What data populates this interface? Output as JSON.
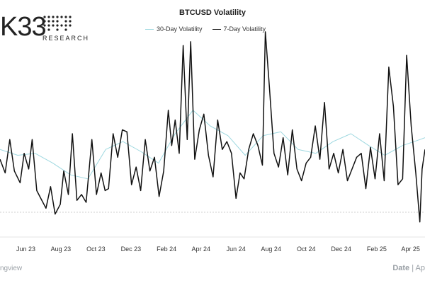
{
  "branding": {
    "logo_mark": "K33",
    "logo_subtitle": "RESEARCH"
  },
  "footer": {
    "source_fragment": "ngview",
    "date_label": "Date",
    "date_value_fragment": "Ap"
  },
  "colors": {
    "series_30d": "#9ed8e0",
    "series_7d": "#111111",
    "gridline": "#cfcfcf"
  },
  "chart_data": {
    "type": "line",
    "title": "BTCUSD Volatility",
    "xlabel": "Date",
    "ylabel": "",
    "x_ticks": [
      "Jun 23",
      "Aug 23",
      "Oct 23",
      "Dec 23",
      "Feb 24",
      "Apr 24",
      "Jun 24",
      "Aug 24",
      "Oct 24",
      "Dec 24",
      "Feb 25",
      "Apr 25"
    ],
    "x_range": [
      "2023-05-01",
      "2025-05-10"
    ],
    "y_range": [
      0,
      100
    ],
    "grid": false,
    "legend": "top-center",
    "series": [
      {
        "name": "30-Day Volatility",
        "color": "#9ed8e0",
        "points": [
          [
            "2023-05-01",
            40
          ],
          [
            "2023-06-01",
            37
          ],
          [
            "2023-07-01",
            38
          ],
          [
            "2023-08-01",
            33
          ],
          [
            "2023-09-01",
            27
          ],
          [
            "2023-10-01",
            25
          ],
          [
            "2023-11-01",
            40
          ],
          [
            "2023-12-01",
            44
          ],
          [
            "2024-01-01",
            39
          ],
          [
            "2024-02-01",
            33
          ],
          [
            "2024-03-01",
            48
          ],
          [
            "2024-04-01",
            60
          ],
          [
            "2024-05-01",
            52
          ],
          [
            "2024-06-01",
            47
          ],
          [
            "2024-07-01",
            37
          ],
          [
            "2024-08-01",
            47
          ],
          [
            "2024-09-01",
            49
          ],
          [
            "2024-10-01",
            40
          ],
          [
            "2024-11-01",
            38
          ],
          [
            "2024-12-01",
            44
          ],
          [
            "2025-01-01",
            48
          ],
          [
            "2025-02-01",
            42
          ],
          [
            "2025-03-01",
            37
          ],
          [
            "2025-04-01",
            42
          ],
          [
            "2025-05-01",
            45
          ],
          [
            "2025-05-10",
            46
          ]
        ]
      },
      {
        "name": "7-Day Volatility",
        "color": "#111111",
        "points": [
          [
            "2023-05-01",
            35
          ],
          [
            "2023-05-10",
            28
          ],
          [
            "2023-05-18",
            45
          ],
          [
            "2023-05-26",
            29
          ],
          [
            "2023-06-05",
            23
          ],
          [
            "2023-06-12",
            38
          ],
          [
            "2023-06-20",
            30
          ],
          [
            "2023-06-26",
            45
          ],
          [
            "2023-07-04",
            19
          ],
          [
            "2023-07-11",
            15
          ],
          [
            "2023-07-20",
            10
          ],
          [
            "2023-07-28",
            21
          ],
          [
            "2023-08-05",
            7
          ],
          [
            "2023-08-14",
            12
          ],
          [
            "2023-08-20",
            29
          ],
          [
            "2023-08-28",
            17
          ],
          [
            "2023-09-04",
            48
          ],
          [
            "2023-09-12",
            14
          ],
          [
            "2023-09-20",
            17
          ],
          [
            "2023-09-28",
            13
          ],
          [
            "2023-10-08",
            45
          ],
          [
            "2023-10-16",
            17
          ],
          [
            "2023-10-24",
            28
          ],
          [
            "2023-10-31",
            19
          ],
          [
            "2023-11-06",
            20
          ],
          [
            "2023-11-14",
            48
          ],
          [
            "2023-11-22",
            36
          ],
          [
            "2023-11-30",
            50
          ],
          [
            "2023-12-08",
            49
          ],
          [
            "2023-12-16",
            22
          ],
          [
            "2023-12-24",
            31
          ],
          [
            "2024-01-01",
            19
          ],
          [
            "2024-01-09",
            45
          ],
          [
            "2024-01-17",
            29
          ],
          [
            "2024-01-25",
            36
          ],
          [
            "2024-02-02",
            16
          ],
          [
            "2024-02-10",
            29
          ],
          [
            "2024-02-18",
            60
          ],
          [
            "2024-02-24",
            42
          ],
          [
            "2024-03-01",
            55
          ],
          [
            "2024-03-08",
            38
          ],
          [
            "2024-03-15",
            93
          ],
          [
            "2024-03-22",
            45
          ],
          [
            "2024-03-28",
            95
          ],
          [
            "2024-04-04",
            35
          ],
          [
            "2024-04-12",
            50
          ],
          [
            "2024-04-20",
            58
          ],
          [
            "2024-04-28",
            37
          ],
          [
            "2024-05-06",
            26
          ],
          [
            "2024-05-14",
            55
          ],
          [
            "2024-05-22",
            40
          ],
          [
            "2024-05-30",
            44
          ],
          [
            "2024-06-07",
            38
          ],
          [
            "2024-06-15",
            15
          ],
          [
            "2024-06-22",
            28
          ],
          [
            "2024-06-29",
            25
          ],
          [
            "2024-07-07",
            40
          ],
          [
            "2024-07-15",
            48
          ],
          [
            "2024-07-23",
            42
          ],
          [
            "2024-07-31",
            32
          ],
          [
            "2024-08-05",
            100
          ],
          [
            "2024-08-12",
            72
          ],
          [
            "2024-08-20",
            38
          ],
          [
            "2024-08-28",
            31
          ],
          [
            "2024-09-05",
            46
          ],
          [
            "2024-09-13",
            27
          ],
          [
            "2024-09-21",
            50
          ],
          [
            "2024-09-29",
            30
          ],
          [
            "2024-10-07",
            24
          ],
          [
            "2024-10-15",
            33
          ],
          [
            "2024-10-23",
            36
          ],
          [
            "2024-10-31",
            52
          ],
          [
            "2024-11-08",
            35
          ],
          [
            "2024-11-16",
            64
          ],
          [
            "2024-11-24",
            30
          ],
          [
            "2024-12-02",
            38
          ],
          [
            "2024-12-10",
            28
          ],
          [
            "2024-12-18",
            40
          ],
          [
            "2024-12-26",
            24
          ],
          [
            "2025-01-03",
            30
          ],
          [
            "2025-01-11",
            36
          ],
          [
            "2025-01-19",
            38
          ],
          [
            "2025-01-27",
            20
          ],
          [
            "2025-02-04",
            41
          ],
          [
            "2025-02-12",
            25
          ],
          [
            "2025-02-20",
            48
          ],
          [
            "2025-02-28",
            24
          ],
          [
            "2025-03-08",
            82
          ],
          [
            "2025-03-16",
            62
          ],
          [
            "2025-03-24",
            22
          ],
          [
            "2025-04-01",
            25
          ],
          [
            "2025-04-08",
            88
          ],
          [
            "2025-04-16",
            52
          ],
          [
            "2025-04-24",
            28
          ],
          [
            "2025-05-01",
            3
          ],
          [
            "2025-05-05",
            30
          ],
          [
            "2025-05-10",
            40
          ]
        ]
      }
    ]
  }
}
